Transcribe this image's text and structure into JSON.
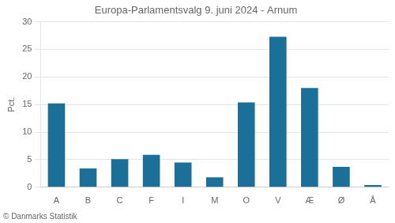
{
  "chart_data": {
    "type": "bar",
    "title": "Europa-Parlamentsvalg 9. juni 2024 - Arnum",
    "ylabel": "Pct.",
    "annotations": [
      "© Danmarks Statistik"
    ],
    "categories": [
      "A",
      "B",
      "C",
      "F",
      "I",
      "M",
      "O",
      "V",
      "Æ",
      "Ø",
      "Å"
    ],
    "values": [
      15.2,
      3.4,
      5.1,
      5.9,
      4.5,
      1.8,
      15.4,
      27.3,
      18.0,
      3.7,
      0.4
    ],
    "color": "#1a7099",
    "ylim": [
      0,
      30
    ],
    "yticks": [
      0,
      5,
      10,
      15,
      20,
      25,
      30
    ],
    "grid": true
  }
}
